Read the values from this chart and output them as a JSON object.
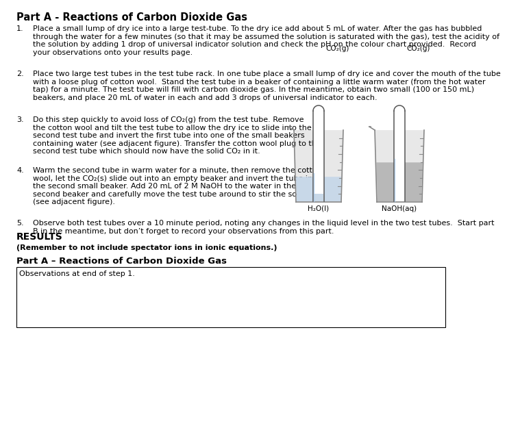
{
  "title": "Part A - Reactions of Carbon Dioxide Gas",
  "title_fontsize": 10.5,
  "body_fontsize": 8.0,
  "small_fontsize": 7.5,
  "background_color": "#ffffff",
  "text_color": "#000000",
  "label_co2_1": "CO₂(g)",
  "label_co2_2": "CO₂(g)",
  "label_bottom1": "H₂O(l)",
  "label_bottom2": "NaOH(aq)",
  "results_title": "RESULTS",
  "results_subtitle": "(Remember to not include spectator ions in ionic equations.)",
  "results_section": "Part A – Reactions of Carbon Dioxide Gas",
  "observations_label": "Observations at end of step 1.",
  "step1_num": "1.",
  "step1_text": "Place a small lump of dry ice into a large test-tube. To the dry ice add about 5 mL of water. After the gas has bubbled\nthrough the water for a few minutes (so that it may be assumed the solution is saturated with the gas), test the acidity of\nthe solution by adding 1 drop of universal indicator solution and check the pH on the colour chart provided.  Record\nyour observations onto your results page.",
  "step2_num": "2.",
  "step2_text": "Place two large test tubes in the test tube rack. In one tube place a small lump of dry ice and cover the mouth of the tube\nwith a loose plug of cotton wool.  Stand the test tube in a beaker of containing a little warm water (from the hot water\ntap) for a minute. The test tube will fill with carbon dioxide gas. In the meantime, obtain two small (100 or 150 mL)\nbeakers, and place 20 mL of water in each and add 3 drops of universal indicator to each.",
  "step3_num": "3.",
  "step3_text": "Do this step quickly to avoid loss of CO₂(g) from the test tube. Remove\nthe cotton wool and tilt the test tube to allow the dry ice to slide into the\nsecond test tube and invert the first tube into one of the small beakers\ncontaining water (see adjacent figure). Transfer the cotton wool plug to the\nsecond test tube which should now have the solid CO₂ in it.",
  "step4_num": "4.",
  "step4_text": "Warm the second tube in warm water for a minute, then remove the cotton\nwool, let the CO₂(s) slide out into an empty beaker and invert the tube into\nthe second small beaker. Add 20 mL of 2 M NaOH to the water in the\nsecond beaker and carefully move the test tube around to stir the solution\n(see adjacent figure).",
  "step5_num": "5.",
  "step5_text": "Observe both test tubes over a 10 minute period, noting any changes in the liquid level in the two test tubes.  Start part\nB in the meantime, but don’t forget to record your observations from this part."
}
